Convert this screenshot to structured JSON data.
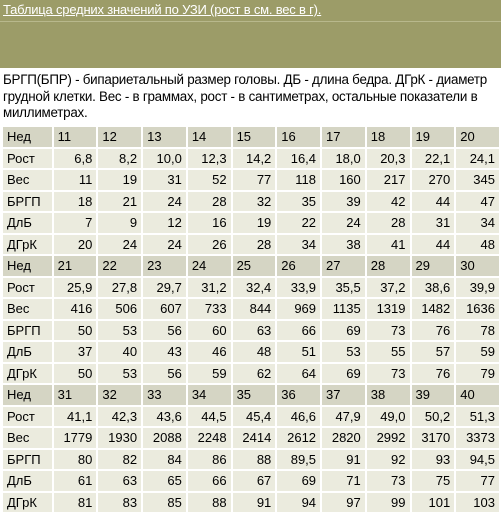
{
  "header": {
    "title": "Таблица средних значений по УЗИ (рост в см. вес в г)."
  },
  "description": "БРГП(БПР) - бипариетальный размер головы. ДБ - длина бедра. ДГрК - диаметр грудной клетки. Вес - в граммах, рост - в сантиметрах, остальные показатели в миллиметрах.",
  "colors": {
    "banner": "#9c9c68",
    "week_row_bg": "#d5d5c4",
    "data_row_bg": "#ebebde"
  },
  "table": {
    "blocks": [
      {
        "rows": [
          {
            "label": "Нед",
            "cells": [
              "11",
              "12",
              "13",
              "14",
              "15",
              "16",
              "17",
              "18",
              "19",
              "20"
            ]
          },
          {
            "label": "Рост",
            "cells": [
              "6,8",
              "8,2",
              "10,0",
              "12,3",
              "14,2",
              "16,4",
              "18,0",
              "20,3",
              "22,1",
              "24,1"
            ]
          },
          {
            "label": "Вес",
            "cells": [
              "11",
              "19",
              "31",
              "52",
              "77",
              "118",
              "160",
              "217",
              "270",
              "345"
            ]
          },
          {
            "label": "БРГП",
            "cells": [
              "18",
              "21",
              "24",
              "28",
              "32",
              "35",
              "39",
              "42",
              "44",
              "47"
            ]
          },
          {
            "label": "ДлБ",
            "cells": [
              "7",
              "9",
              "12",
              "16",
              "19",
              "22",
              "24",
              "28",
              "31",
              "34"
            ]
          },
          {
            "label": "ДГрК",
            "cells": [
              "20",
              "24",
              "24",
              "26",
              "28",
              "34",
              "38",
              "41",
              "44",
              "48"
            ]
          }
        ]
      },
      {
        "rows": [
          {
            "label": "Нед",
            "cells": [
              "21",
              "22",
              "23",
              "24",
              "25",
              "26",
              "27",
              "28",
              "29",
              "30"
            ]
          },
          {
            "label": "Рост",
            "cells": [
              "25,9",
              "27,8",
              "29,7",
              "31,2",
              "32,4",
              "33,9",
              "35,5",
              "37,2",
              "38,6",
              "39,9"
            ]
          },
          {
            "label": "Вес",
            "cells": [
              "416",
              "506",
              "607",
              "733",
              "844",
              "969",
              "1135",
              "1319",
              "1482",
              "1636"
            ]
          },
          {
            "label": "БРГП",
            "cells": [
              "50",
              "53",
              "56",
              "60",
              "63",
              "66",
              "69",
              "73",
              "76",
              "78"
            ]
          },
          {
            "label": "ДлБ",
            "cells": [
              "37",
              "40",
              "43",
              "46",
              "48",
              "51",
              "53",
              "55",
              "57",
              "59"
            ]
          },
          {
            "label": "ДГрК",
            "cells": [
              "50",
              "53",
              "56",
              "59",
              "62",
              "64",
              "69",
              "73",
              "76",
              "79"
            ]
          }
        ]
      },
      {
        "rows": [
          {
            "label": "Нед",
            "cells": [
              "31",
              "32",
              "33",
              "34",
              "35",
              "36",
              "37",
              "38",
              "39",
              "40"
            ]
          },
          {
            "label": "Рост",
            "cells": [
              "41,1",
              "42,3",
              "43,6",
              "44,5",
              "45,4",
              "46,6",
              "47,9",
              "49,0",
              "50,2",
              "51,3"
            ]
          },
          {
            "label": "Вес",
            "cells": [
              "1779",
              "1930",
              "2088",
              "2248",
              "2414",
              "2612",
              "2820",
              "2992",
              "3170",
              "3373"
            ]
          },
          {
            "label": "БРГП",
            "cells": [
              "80",
              "82",
              "84",
              "86",
              "88",
              "89,5",
              "91",
              "92",
              "93",
              "94,5"
            ]
          },
          {
            "label": "ДлБ",
            "cells": [
              "61",
              "63",
              "65",
              "66",
              "67",
              "69",
              "71",
              "73",
              "75",
              "77"
            ]
          },
          {
            "label": "ДГрК",
            "cells": [
              "81",
              "83",
              "85",
              "88",
              "91",
              "94",
              "97",
              "99",
              "101",
              "103"
            ]
          }
        ]
      }
    ]
  }
}
